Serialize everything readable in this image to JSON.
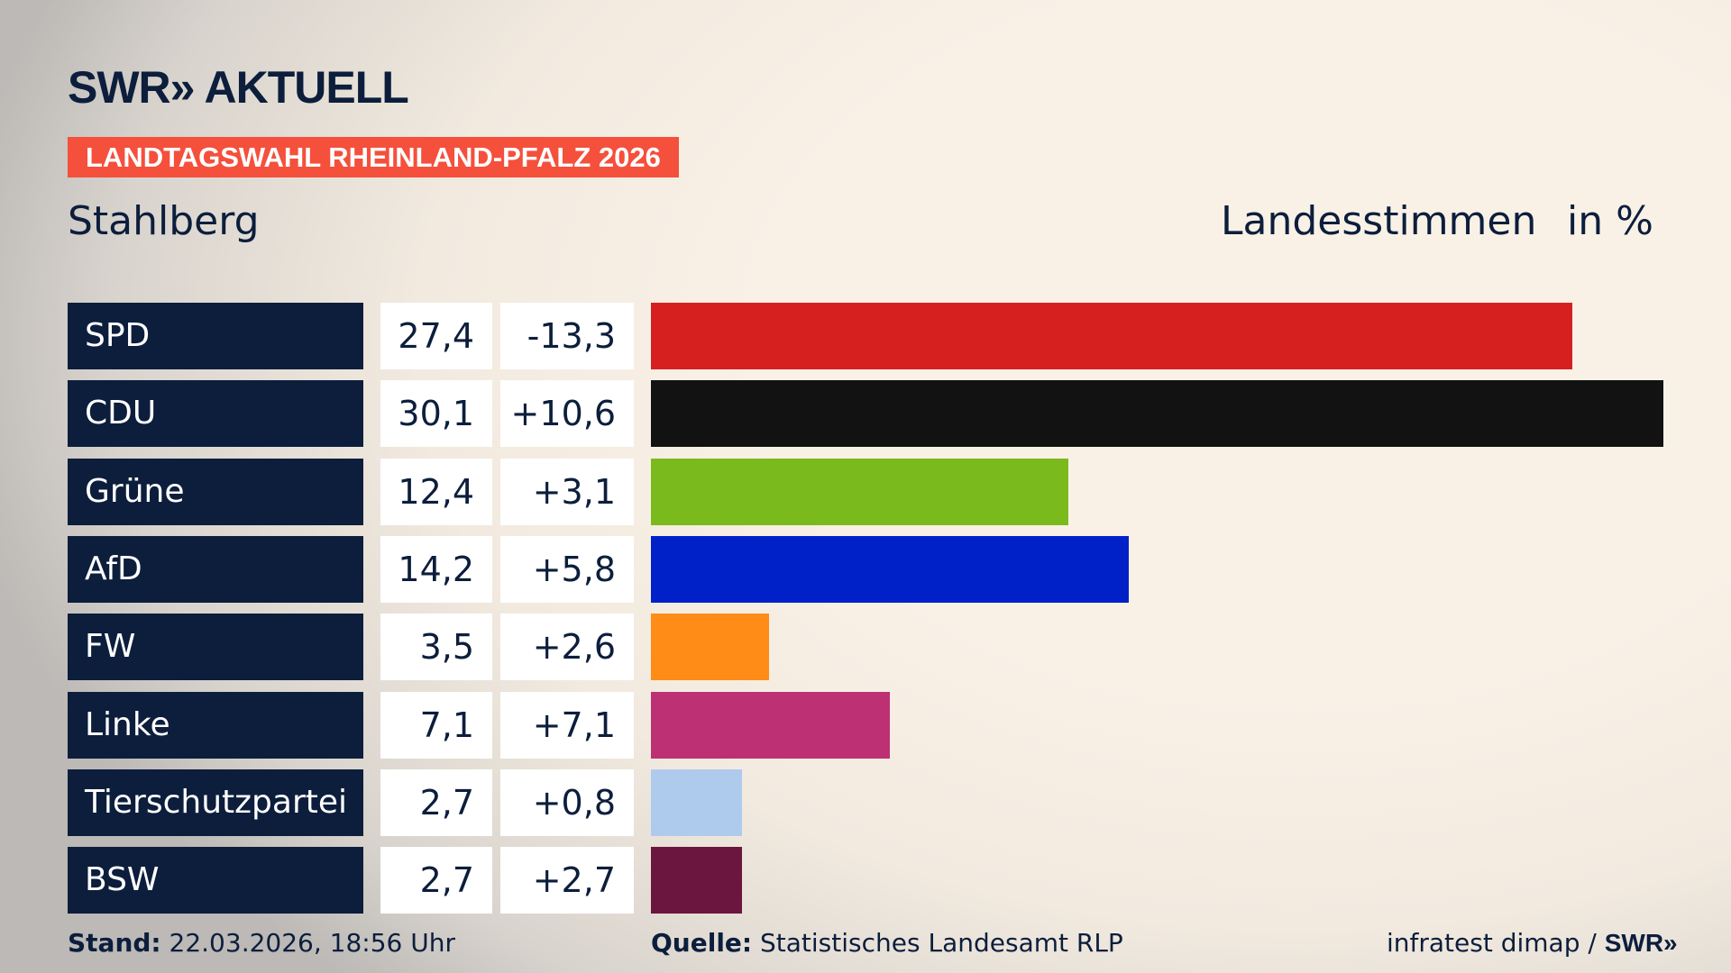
{
  "brand": {
    "logo": "SWR» AKTUELL"
  },
  "tag": "LANDTAGSWAHL RHEINLAND-PFALZ 2026",
  "region": "Stahlberg",
  "header": {
    "type": "Landesstimmen",
    "unit": "in %"
  },
  "chart_data": {
    "type": "bar",
    "orientation": "horizontal",
    "categories": [
      "SPD",
      "CDU",
      "Grüne",
      "AfD",
      "FW",
      "Linke",
      "Tierschutzpartei",
      "BSW"
    ],
    "values": [
      "27,4",
      "30,1",
      "12,4",
      "14,2",
      "3,5",
      "7,1",
      "2,7",
      "2,7"
    ],
    "changes": [
      "-13,3",
      "+10,6",
      "+3,1",
      "+5,8",
      "+2,6",
      "+7,1",
      "+0,8",
      "+2,7"
    ],
    "numeric_values": [
      27.4,
      30.1,
      12.4,
      14.2,
      3.5,
      7.1,
      2.7,
      2.7
    ],
    "colors": [
      "#d62020",
      "#121212",
      "#7aba1c",
      "#0021c8",
      "#ff8c16",
      "#bd3073",
      "#aecbee",
      "#6a163f"
    ],
    "xlim": [
      0,
      30.1
    ]
  },
  "footer": {
    "stand_label": "Stand:",
    "stand": "22.03.2026, 18:56 Uhr",
    "source_label": "Quelle:",
    "source": "Statistisches Landesamt RLP",
    "credit": "infratest dimap / ",
    "credit_logo": "SWR»"
  }
}
